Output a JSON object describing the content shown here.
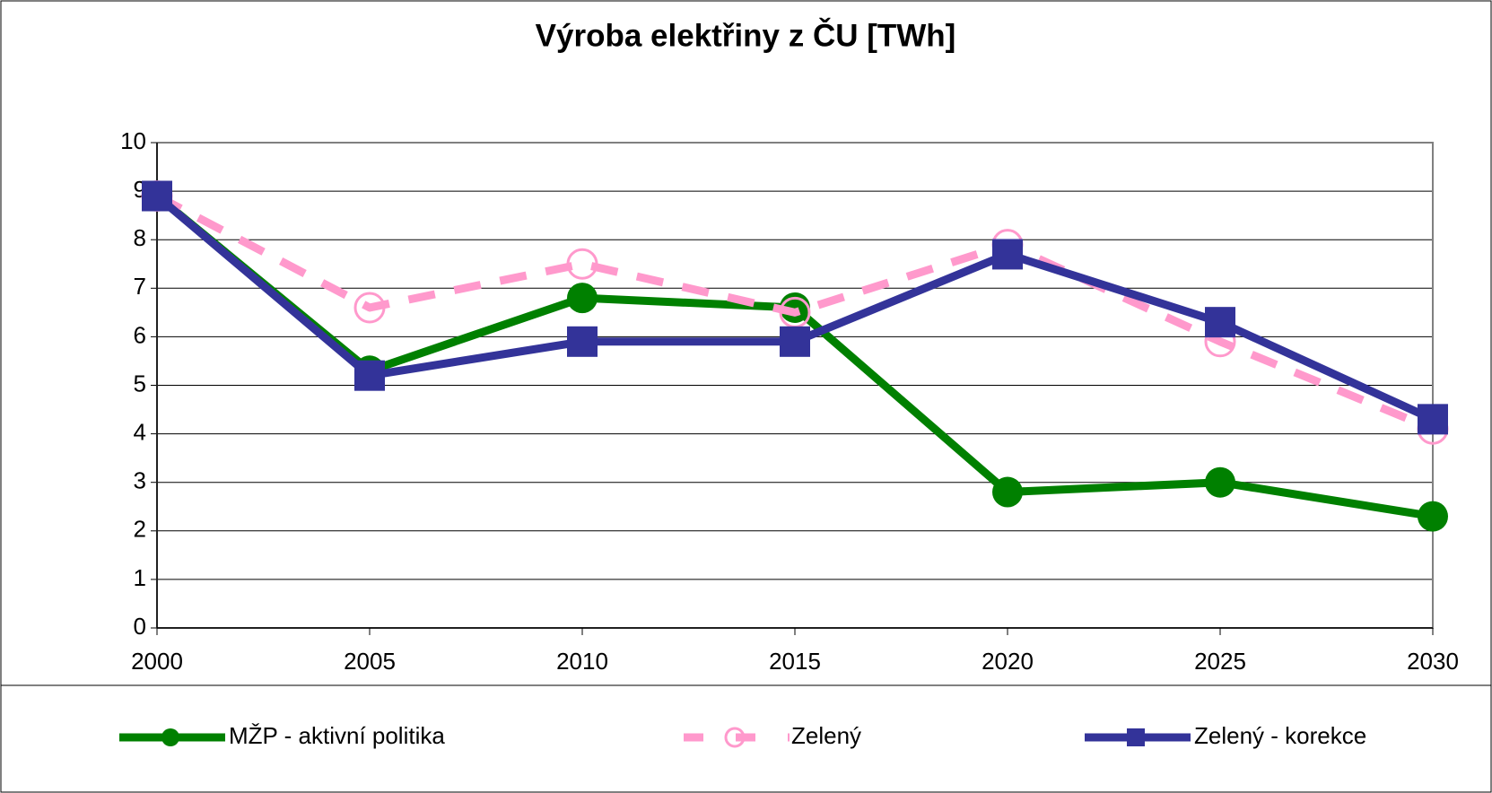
{
  "chart_data": {
    "type": "line",
    "title": "Výroba elektřiny z ČU [TWh]",
    "x": [
      2000,
      2005,
      2010,
      2015,
      2020,
      2025,
      2030
    ],
    "xlim": [
      2000,
      2030
    ],
    "xticks": [
      2000,
      2005,
      2010,
      2015,
      2020,
      2025,
      2030
    ],
    "ylim": [
      0,
      10
    ],
    "yticks": [
      0,
      1,
      2,
      3,
      4,
      5,
      6,
      7,
      8,
      9,
      10
    ],
    "grid": true,
    "legend": "bottom",
    "series": [
      {
        "name": "MŽP - aktivní politika",
        "color": "#008000",
        "marker": "circle",
        "values": [
          8.9,
          5.3,
          6.8,
          6.6,
          2.8,
          3.0,
          2.3
        ]
      },
      {
        "name": "Zelený",
        "color": "#ff99cc",
        "marker": "hollow-circle",
        "dashed": true,
        "values": [
          8.9,
          6.6,
          7.5,
          6.5,
          7.9,
          5.9,
          4.1
        ]
      },
      {
        "name": "Zelený - korekce",
        "color": "#333399",
        "marker": "square",
        "values": [
          8.9,
          5.2,
          5.9,
          5.9,
          7.7,
          6.3,
          4.3
        ]
      }
    ]
  }
}
